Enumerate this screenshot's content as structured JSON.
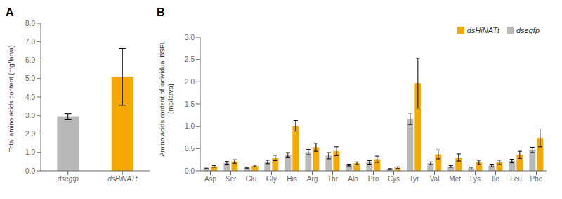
{
  "chart_data": [
    {
      "type": "bar",
      "title": "A",
      "categories": [
        "dsegfp",
        "dsHiNATt"
      ],
      "values": [
        2.95,
        5.1
      ],
      "errors": [
        0.15,
        1.55
      ],
      "colors": [
        "#b8b8b8",
        "#f5a800"
      ],
      "ylabel": "Total amino acids content (mg/larva)",
      "ylim": [
        0,
        8.0
      ],
      "yticks": [
        {
          "value": 0,
          "label": "0.0"
        },
        {
          "value": 1,
          "label": "1.0"
        },
        {
          "value": 2,
          "label": "2.0"
        },
        {
          "value": 3,
          "label": "3.0"
        },
        {
          "value": 4,
          "label": "4.0"
        },
        {
          "value": 5,
          "label": "5.0"
        },
        {
          "value": 6,
          "label": "6.0"
        },
        {
          "value": 7,
          "label": "7.0"
        },
        {
          "value": 8,
          "label": "8.0"
        }
      ]
    },
    {
      "type": "bar",
      "title": "B",
      "categories": [
        "Asp",
        "Ser",
        "Glu",
        "Gly",
        "His",
        "Arg",
        "Thr",
        "Ala",
        "Pro",
        "Cys",
        "Tyr",
        "Val",
        "Met",
        "Lys",
        "Ile",
        "Leu",
        "Phe"
      ],
      "series": [
        {
          "name": "dsegfp",
          "color": "#b8b8b8",
          "values": [
            0.05,
            0.18,
            0.07,
            0.2,
            0.36,
            0.42,
            0.34,
            0.13,
            0.19,
            0.04,
            1.17,
            0.17,
            0.1,
            0.06,
            0.12,
            0.22,
            0.47
          ],
          "errors": [
            0.01,
            0.03,
            0.01,
            0.04,
            0.05,
            0.06,
            0.07,
            0.02,
            0.04,
            0.01,
            0.13,
            0.03,
            0.02,
            0.02,
            0.03,
            0.04,
            0.06
          ]
        },
        {
          "name": "dsHiNATt",
          "color": "#f5a800",
          "values": [
            0.1,
            0.21,
            0.11,
            0.29,
            1.01,
            0.53,
            0.44,
            0.17,
            0.26,
            0.07,
            1.97,
            0.37,
            0.3,
            0.19,
            0.19,
            0.36,
            0.74
          ],
          "errors": [
            0.02,
            0.04,
            0.02,
            0.06,
            0.12,
            0.09,
            0.1,
            0.03,
            0.07,
            0.02,
            0.56,
            0.1,
            0.08,
            0.05,
            0.05,
            0.08,
            0.2
          ]
        }
      ],
      "ylabel": "Amino acids content of individual BSFL\n(mg/larva)",
      "ylim": [
        0,
        3.0
      ],
      "yticks": [
        {
          "value": 0,
          "label": "0.0"
        },
        0.5,
        {
          "value": 1,
          "label": "1.0"
        },
        1.5,
        {
          "value": 2,
          "label": "2.0"
        },
        2.5,
        {
          "value": 3,
          "label": "3.0"
        }
      ],
      "legend": "upper right"
    }
  ]
}
